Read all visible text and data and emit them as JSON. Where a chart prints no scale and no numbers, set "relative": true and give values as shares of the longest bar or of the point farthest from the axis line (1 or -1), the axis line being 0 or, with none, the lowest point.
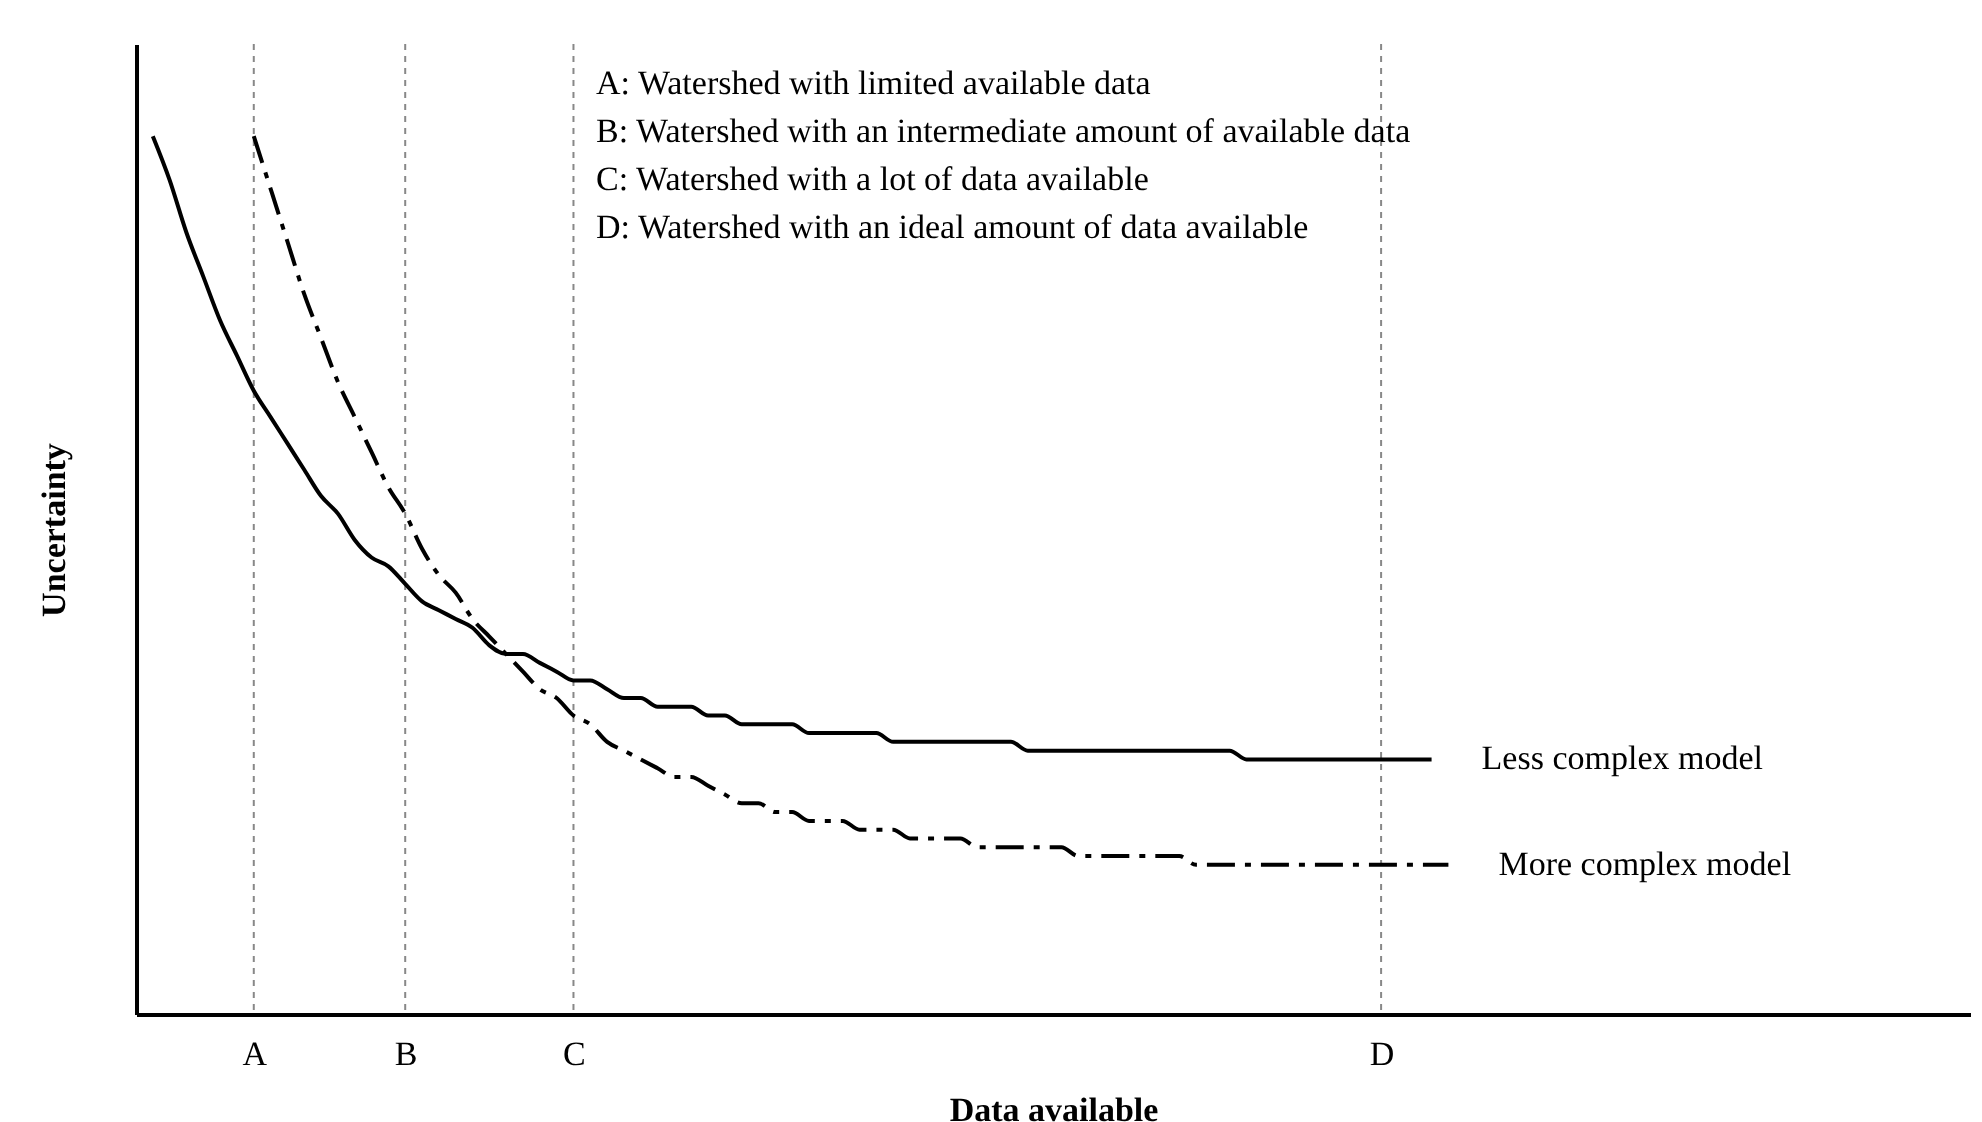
{
  "chart_data": {
    "type": "line",
    "relative": true,
    "xlabel": "Data available",
    "ylabel": "Uncertainty",
    "grid": false,
    "annotations": [
      "A: Watershed with limited available data",
      "B: Watershed with an intermediate amount of available data",
      "C: Watershed with a lot of data available",
      "D: Watershed with an ideal amount of data available"
    ],
    "categories": [
      null,
      null,
      null,
      null,
      null,
      null,
      null,
      "A",
      null,
      null,
      null,
      null,
      null,
      null,
      null,
      null,
      "B",
      null,
      null,
      null,
      null,
      null,
      null,
      null,
      null,
      null,
      "C",
      null,
      null,
      null,
      null,
      null,
      null,
      null,
      null,
      null,
      null,
      null,
      null,
      null,
      null,
      null,
      null,
      null,
      null,
      null,
      null,
      null,
      null,
      null,
      null,
      null,
      null,
      null,
      null,
      null,
      null,
      null,
      null,
      null,
      null,
      null,
      null,
      null,
      null,
      null,
      null,
      null,
      null,
      null,
      null,
      null,
      null,
      null,
      "D",
      null,
      null,
      null,
      null,
      null,
      null,
      null,
      null,
      null,
      null,
      null,
      null,
      null,
      null,
      null,
      null,
      null,
      null,
      null,
      null,
      null,
      null,
      null,
      null,
      null,
      null,
      null,
      null,
      null,
      null,
      null,
      null,
      null,
      null,
      null
    ],
    "ref_lines": [
      {
        "axis": "x",
        "value": "A",
        "line_style": "dotted"
      },
      {
        "axis": "x",
        "value": "B",
        "line_style": "dotted"
      },
      {
        "axis": "x",
        "value": "C",
        "line_style": "dotted"
      },
      {
        "axis": "x",
        "value": "D",
        "line_style": "dotted"
      }
    ],
    "series": [
      {
        "name": "Less complex model",
        "color": "#000000",
        "line_style": "solid",
        "values": [
          null,
          1.0,
          0.95,
          0.89,
          0.84,
          0.79,
          0.75,
          0.71,
          0.68,
          0.65,
          0.62,
          0.59,
          0.57,
          0.54,
          0.52,
          0.51,
          0.49,
          0.47,
          0.46,
          0.45,
          0.44,
          0.42,
          0.41,
          0.41,
          0.4,
          0.39,
          0.38,
          0.38,
          0.37,
          0.36,
          0.36,
          0.35,
          0.35,
          0.35,
          0.34,
          0.34,
          0.33,
          0.33,
          0.33,
          0.33,
          0.32,
          0.32,
          0.32,
          0.32,
          0.32,
          0.31,
          0.31,
          0.31,
          0.31,
          0.31,
          0.31,
          0.31,
          0.31,
          0.3,
          0.3,
          0.3,
          0.3,
          0.3,
          0.3,
          0.3,
          0.3,
          0.3,
          0.3,
          0.3,
          0.3,
          0.3,
          0.29,
          0.29,
          0.29,
          0.29,
          0.29,
          0.29,
          0.29,
          0.29,
          0.29,
          0.29,
          0.29,
          0.29,
          null,
          null,
          null,
          null,
          null,
          null,
          null,
          null,
          null,
          null,
          null,
          null,
          null,
          null,
          null,
          null,
          null,
          null,
          null,
          null,
          null,
          null,
          null,
          null,
          null,
          null,
          null,
          null,
          null,
          null,
          null,
          null
        ]
      },
      {
        "name": "More complex model",
        "color": "#000000",
        "line_style": "dashed",
        "values": [
          null,
          null,
          null,
          null,
          null,
          null,
          null,
          1.0,
          0.94,
          0.88,
          0.82,
          0.77,
          0.72,
          0.68,
          0.64,
          0.6,
          0.57,
          0.53,
          0.5,
          0.48,
          0.45,
          0.43,
          0.41,
          0.39,
          0.37,
          0.36,
          0.34,
          0.33,
          0.31,
          0.3,
          0.29,
          0.28,
          0.27,
          0.27,
          0.26,
          0.25,
          0.24,
          0.24,
          0.23,
          0.23,
          0.22,
          0.22,
          0.22,
          0.21,
          0.21,
          0.21,
          0.2,
          0.2,
          0.2,
          0.2,
          0.19,
          0.19,
          0.19,
          0.19,
          0.19,
          0.19,
          0.18,
          0.18,
          0.18,
          0.18,
          0.18,
          0.18,
          0.18,
          0.17,
          0.17,
          0.17,
          0.17,
          0.17,
          0.17,
          0.17,
          0.17,
          0.17,
          0.17,
          0.17,
          0.17,
          0.17,
          0.17,
          0.17,
          0.17,
          null,
          null,
          null,
          null,
          null,
          null,
          null,
          null,
          null,
          null,
          null,
          null,
          null,
          null,
          null,
          null,
          null,
          null,
          null,
          null,
          null,
          null,
          null,
          null,
          null,
          null,
          null,
          null,
          null,
          null,
          null
        ]
      }
    ]
  }
}
